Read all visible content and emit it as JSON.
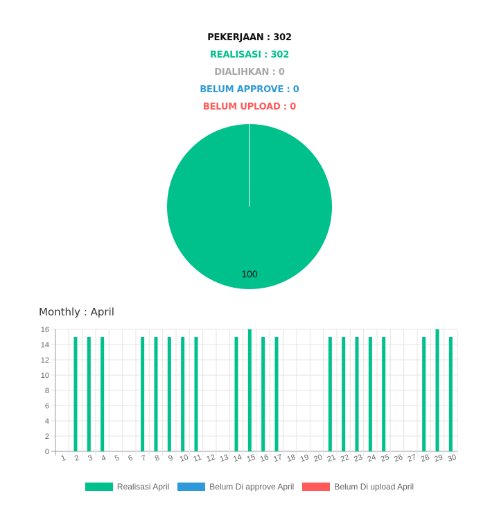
{
  "summary": {
    "pekerjaan": "PEKERJAAN : 302",
    "realisasi": "REALISASI : 302",
    "dialihkan": "DIALIHKAN : 0",
    "belum_approve": "BELUM APPROVE : 0",
    "belum_upload": "BELUM UPLOAD : 0"
  },
  "colors": {
    "realisasi": "#00c08b",
    "belum_approve": "#2f9ad9",
    "belum_upload": "#ff5a5a"
  },
  "chart_data": [
    {
      "type": "pie",
      "labels": [
        "Realisasi",
        "Dialihkan",
        "Belum Approve",
        "Belum Upload"
      ],
      "values": [
        100,
        0,
        0,
        0
      ],
      "data_label": "100"
    },
    {
      "type": "bar",
      "title": "Monthly : April",
      "categories": [
        "1",
        "2",
        "3",
        "4",
        "5",
        "6",
        "7",
        "8",
        "9",
        "10",
        "11",
        "12",
        "13",
        "14",
        "15",
        "16",
        "17",
        "18",
        "19",
        "20",
        "21",
        "22",
        "23",
        "24",
        "25",
        "26",
        "27",
        "28",
        "29",
        "30"
      ],
      "series": [
        {
          "name": "Realisasi April",
          "values": [
            0,
            15,
            15,
            15,
            0,
            0,
            15,
            15,
            15,
            15,
            15,
            0,
            0,
            15,
            16,
            15,
            15,
            0,
            0,
            0,
            15,
            15,
            15,
            15,
            15,
            0,
            0,
            15,
            16,
            15
          ]
        },
        {
          "name": "Belum Di approve April",
          "values": [
            0,
            0,
            0,
            0,
            0,
            0,
            0,
            0,
            0,
            0,
            0,
            0,
            0,
            0,
            0,
            0,
            0,
            0,
            0,
            0,
            0,
            0,
            0,
            0,
            0,
            0,
            0,
            0,
            0,
            0
          ]
        },
        {
          "name": "Belum Di upload April",
          "values": [
            0,
            0,
            0,
            0,
            0,
            0,
            0,
            0,
            0,
            0,
            0,
            0,
            0,
            0,
            0,
            0,
            0,
            0,
            0,
            0,
            0,
            0,
            0,
            0,
            0,
            0,
            0,
            0,
            0,
            0
          ]
        }
      ],
      "yticks": [
        "0",
        "2",
        "4",
        "6",
        "8",
        "10",
        "12",
        "14",
        "16"
      ],
      "ylim": [
        0,
        16
      ],
      "grid": true,
      "legend_position": "bottom"
    }
  ]
}
